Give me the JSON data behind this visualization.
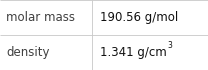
{
  "rows": [
    {
      "label": "molar mass",
      "value": "190.56 g/mol",
      "superscript": null
    },
    {
      "label": "density",
      "value": "1.341 g/cm",
      "superscript": "3"
    }
  ],
  "background_color": "#ffffff",
  "border_color": "#c8c8c8",
  "label_color": "#404040",
  "value_color": "#111111",
  "font_size": 8.5,
  "sup_font_size": 5.5,
  "col_split": 0.44,
  "fig_width": 2.08,
  "fig_height": 0.7,
  "dpi": 100
}
